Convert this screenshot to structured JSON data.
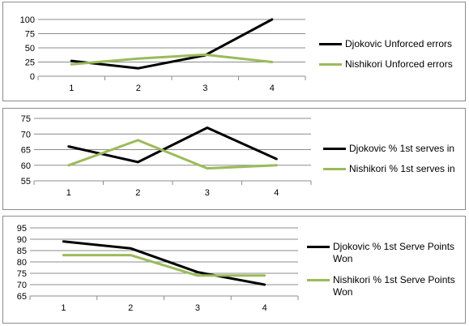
{
  "chart_data": [
    {
      "type": "line",
      "categories": [
        "1",
        "2",
        "3",
        "4"
      ],
      "yticks": [
        "0",
        "25",
        "50",
        "75",
        "100"
      ],
      "ylim": [
        0,
        100
      ],
      "grid": true,
      "legend_position": "right",
      "series": [
        {
          "name": "Djokovic Unforced errors",
          "color": "#000000",
          "values": [
            27,
            14,
            37,
            100
          ]
        },
        {
          "name": "Nishikori Unforced errors",
          "color": "#9bbb59",
          "values": [
            21,
            31,
            38,
            25
          ]
        }
      ]
    },
    {
      "type": "line",
      "categories": [
        "1",
        "2",
        "3",
        "4"
      ],
      "yticks": [
        "55",
        "60",
        "65",
        "70",
        "75"
      ],
      "ylim": [
        55,
        75
      ],
      "grid": true,
      "legend_position": "right",
      "series": [
        {
          "name": "Djokovic % 1st serves in",
          "color": "#000000",
          "values": [
            66,
            61,
            72,
            62
          ]
        },
        {
          "name": "Nishikori % 1st serves in",
          "color": "#9bbb59",
          "values": [
            60,
            68,
            59,
            60
          ]
        }
      ]
    },
    {
      "type": "line",
      "categories": [
        "1",
        "2",
        "3",
        "4"
      ],
      "yticks": [
        "65",
        "70",
        "75",
        "80",
        "85",
        "90",
        "95"
      ],
      "ylim": [
        65,
        95
      ],
      "grid": true,
      "legend_position": "right",
      "series": [
        {
          "name": "Djokovic % 1st Serve Points Won",
          "color": "#000000",
          "values": [
            89,
            86,
            75.5,
            70
          ]
        },
        {
          "name": "Nishikori % 1st Serve Points Won",
          "color": "#9bbb59",
          "values": [
            83,
            83,
            74,
            74
          ]
        }
      ]
    }
  ]
}
